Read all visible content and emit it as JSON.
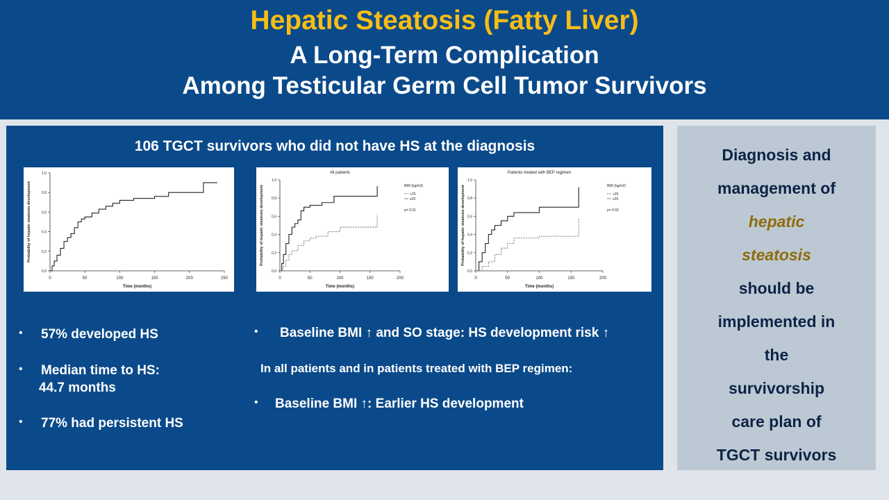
{
  "header": {
    "title_line1": "Hepatic Steatosis (Fatty Liver)",
    "title_line2": "A Long-Term Complication",
    "title_line3": "Among Testicular Germ Cell Tumor Survivors"
  },
  "panel": {
    "heading": "106 TGCT survivors who did not have HS at the diagnosis",
    "left_bullets": [
      "57% developed HS",
      "Median time to HS:",
      "44.7 months",
      "77% had persistent HS"
    ],
    "right_bullet1": "Baseline BMI ↑ and SO stage: HS development risk ↑",
    "right_subtext": "In all patients and in patients treated with BEP regimen:",
    "right_bullet2": "Baseline BMI ↑: Earlier HS development",
    "bullet_char": "•"
  },
  "side": {
    "lines": [
      "Diagnosis and",
      "management of",
      "hepatic",
      "steatosis",
      "should be",
      "implemented in",
      "the",
      "survivorship",
      "care plan of",
      "TGCT survivors"
    ]
  },
  "chart_data": [
    {
      "type": "line",
      "title": "",
      "xlabel": "Time (months)",
      "ylabel": "Probability of hepatic steatosis development",
      "xlim": [
        0,
        250
      ],
      "ylim": [
        0,
        1.0
      ],
      "xticks": [
        "0",
        "50",
        "100",
        "150",
        "200",
        "250"
      ],
      "yticks": [
        "0,0",
        "0,2",
        "0,4",
        "0,6",
        "0,8",
        "1,0"
      ],
      "series": [
        {
          "x": [
            0,
            3,
            6,
            10,
            15,
            20,
            25,
            30,
            35,
            40,
            45,
            50,
            60,
            70,
            80,
            90,
            100,
            120,
            150,
            160,
            170,
            200,
            220,
            230,
            240
          ],
          "y": [
            0,
            0.05,
            0.1,
            0.16,
            0.23,
            0.3,
            0.34,
            0.38,
            0.44,
            0.5,
            0.53,
            0.55,
            0.59,
            0.63,
            0.66,
            0.69,
            0.72,
            0.74,
            0.76,
            0.76,
            0.8,
            0.8,
            0.9,
            0.9,
            0.9
          ]
        }
      ]
    },
    {
      "type": "line",
      "title": "All patients",
      "xlabel": "Time (months)",
      "ylabel": "Probability of hepatic steatosis development",
      "xlim": [
        0,
        200
      ],
      "ylim": [
        0,
        1.0
      ],
      "xticks": [
        "0",
        "50",
        "100",
        "150",
        "200"
      ],
      "yticks": [
        "0,0",
        "0,2",
        "0,4",
        "0,6",
        "0,8",
        "1,0"
      ],
      "legend_title": "BMI (kg/m2)",
      "legend": [
        "<25",
        "≥25"
      ],
      "pvalue": "p= 0.01",
      "series": [
        {
          "name": "≥25",
          "x": [
            0,
            3,
            6,
            10,
            15,
            20,
            25,
            30,
            35,
            40,
            50,
            70,
            90,
            160,
            162
          ],
          "y": [
            0,
            0.08,
            0.18,
            0.3,
            0.4,
            0.48,
            0.52,
            0.56,
            0.66,
            0.7,
            0.72,
            0.75,
            0.82,
            0.82,
            0.93
          ]
        },
        {
          "name": "<25",
          "x": [
            0,
            5,
            10,
            15,
            20,
            30,
            40,
            50,
            60,
            80,
            100,
            160,
            162
          ],
          "y": [
            0,
            0.05,
            0.12,
            0.18,
            0.22,
            0.28,
            0.33,
            0.36,
            0.38,
            0.43,
            0.48,
            0.48,
            0.62
          ]
        }
      ]
    },
    {
      "type": "line",
      "title": "Patients treated with BEP regimen",
      "xlabel": "Time (months)",
      "ylabel": "Probability of hepatic steatosis development",
      "xlim": [
        0,
        200
      ],
      "ylim": [
        0,
        1.0
      ],
      "xticks": [
        "0",
        "50",
        "100",
        "150",
        "200"
      ],
      "yticks": [
        "0,0",
        "0,2",
        "0,4",
        "0,6",
        "0,8",
        "1,0"
      ],
      "legend_title": "BMI (kg/m2)",
      "legend": [
        "<25",
        "≥25"
      ],
      "pvalue": "p= 0.03",
      "series": [
        {
          "name": "≥25",
          "x": [
            0,
            5,
            10,
            15,
            20,
            25,
            30,
            40,
            50,
            60,
            100,
            160,
            162
          ],
          "y": [
            0,
            0.1,
            0.2,
            0.3,
            0.4,
            0.45,
            0.5,
            0.55,
            0.6,
            0.64,
            0.7,
            0.7,
            0.92
          ]
        },
        {
          "name": "<25",
          "x": [
            0,
            10,
            20,
            30,
            40,
            50,
            60,
            100,
            160,
            162
          ],
          "y": [
            0,
            0.05,
            0.1,
            0.18,
            0.25,
            0.3,
            0.36,
            0.38,
            0.38,
            0.58
          ]
        }
      ]
    }
  ]
}
